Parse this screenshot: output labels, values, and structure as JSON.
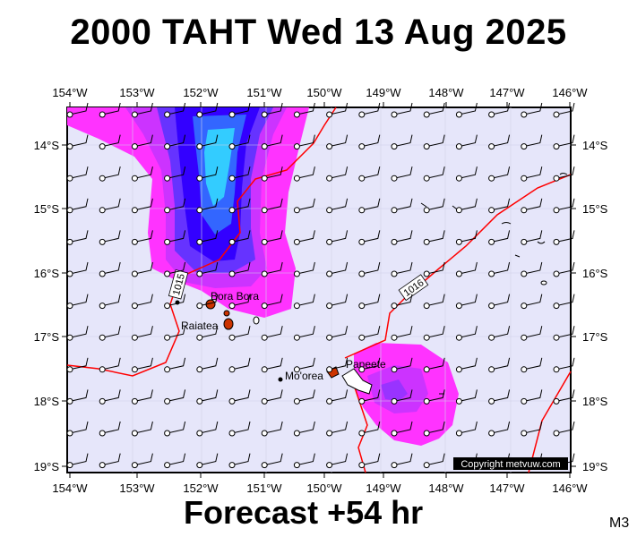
{
  "title": "2000 TAHT Wed 13 Aug 2025",
  "footer": "Forecast +54 hr",
  "model_tag": "M3",
  "copyright": "Copyright metvuw.com",
  "longitude_labels": [
    "154°W",
    "153°W",
    "152°W",
    "151°W",
    "150°W",
    "149°W",
    "148°W",
    "147°W",
    "146°W"
  ],
  "latitude_labels": [
    "14°S",
    "15°S",
    "16°S",
    "17°S",
    "18°S",
    "19°S"
  ],
  "places": [
    {
      "name": "Bora Bora"
    },
    {
      "name": "Raiatea"
    },
    {
      "name": "Mo'orea"
    },
    {
      "name": "Papeete"
    }
  ],
  "isobars": [
    {
      "label": "1015"
    },
    {
      "label": "1016"
    }
  ],
  "colors": {
    "background": "#e6e6fa",
    "isobar": "#ff0000",
    "rain_light": "#ff33ff",
    "rain_moderate": "#cc33ff",
    "rain_heavy": "#6633ff",
    "rain_very_heavy": "#3300ff",
    "rain_extreme": "#33ccff"
  },
  "wind_barbs": "south-easterly winds, uniform grid across the domain"
}
